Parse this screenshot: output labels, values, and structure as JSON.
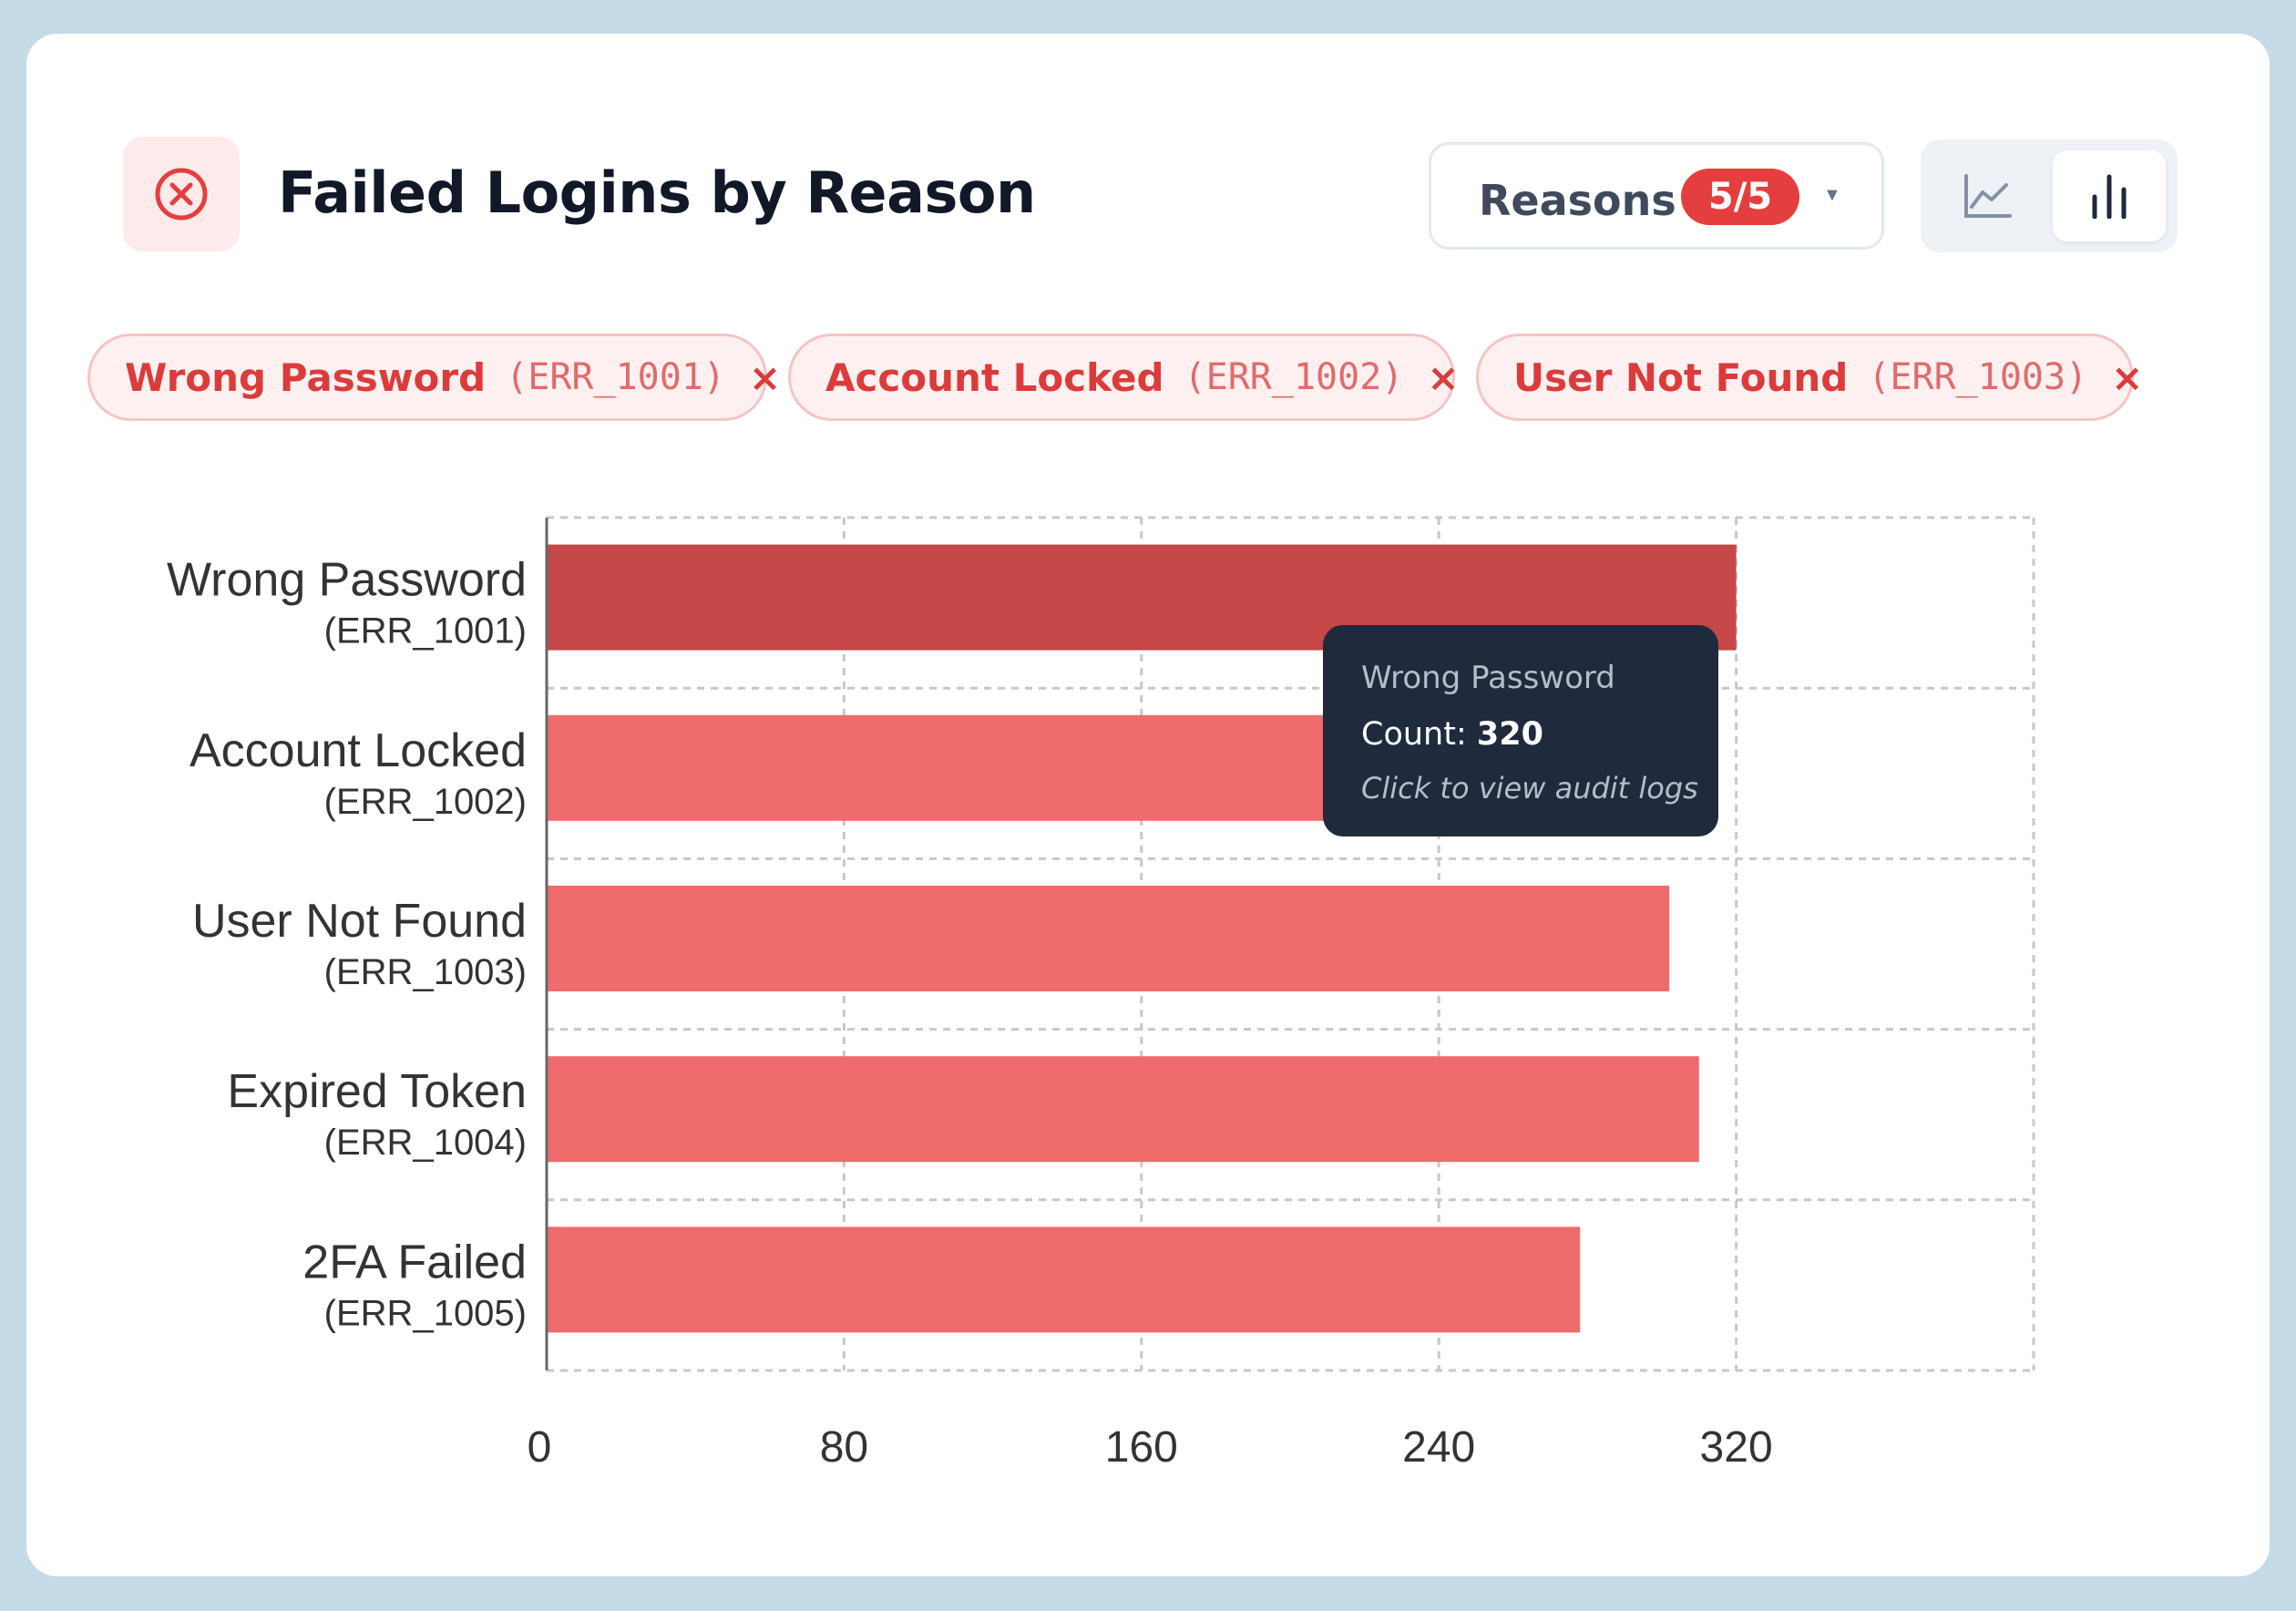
{
  "header": {
    "icon": "x-circle-icon",
    "title": "Failed Logins by Reason",
    "reasons_label": "Reasons",
    "reasons_badge": "5/5",
    "view_toggle": {
      "options": [
        "line-chart-icon",
        "bar-chart-icon"
      ],
      "selected": "bar-chart-icon"
    }
  },
  "chips": [
    {
      "label": "Wrong Password",
      "code": "(ERR_1001)",
      "remove": "×"
    },
    {
      "label": "Account Locked",
      "code": "(ERR_1002)",
      "remove": "×"
    },
    {
      "label": "User Not Found",
      "code": "(ERR_1003)",
      "remove": "×"
    }
  ],
  "tooltip": {
    "title": "Wrong Password",
    "count_label": "Count:",
    "count_value": "320",
    "hint": "Click to view audit logs"
  },
  "colors": {
    "bar": "#f06b6b",
    "bar_highlight": "#c54747",
    "accent": "#e53e3e",
    "tooltip_bg": "#1f2a3c"
  },
  "chart_data": {
    "type": "bar",
    "orientation": "horizontal",
    "categories": [
      "Wrong Password",
      "Account Locked",
      "User Not Found",
      "Expired Token",
      "2FA Failed"
    ],
    "codes": [
      "(ERR_1001)",
      "(ERR_1002)",
      "(ERR_1003)",
      "(ERR_1004)",
      "(ERR_1005)"
    ],
    "values": [
      320,
      265,
      302,
      310,
      278
    ],
    "highlighted": "Wrong Password",
    "x_ticks": [
      "0",
      "80",
      "160",
      "240",
      "320"
    ],
    "xlim": [
      0,
      400
    ],
    "grid": true
  }
}
